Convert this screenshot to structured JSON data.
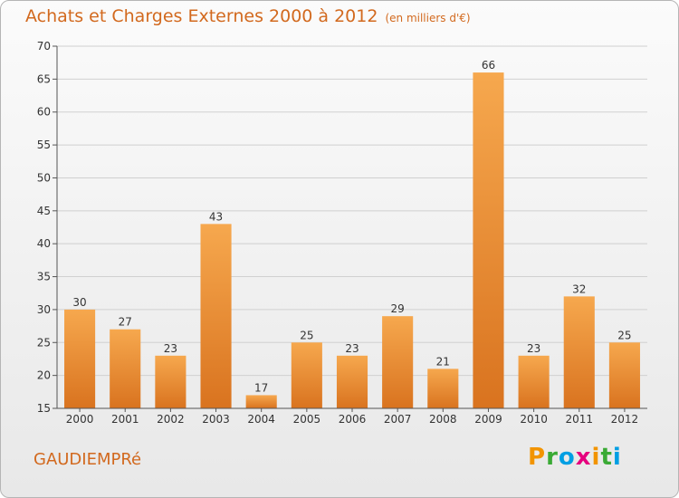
{
  "title": "Achats et Charges Externes 2000 à 2012",
  "unit_label": "(en milliers d'€)",
  "commune": "GAUDIEMPRé",
  "logo": {
    "letters": [
      "P",
      "r",
      "o",
      "x",
      "i",
      "t",
      "i"
    ],
    "colors": [
      "#f29400",
      "#3aaa35",
      "#009fe3",
      "#e6007e",
      "#f29400",
      "#3aaa35",
      "#009fe3"
    ]
  },
  "colors": {
    "bar_light": "#f6a84e",
    "bar_dark": "#d9731f",
    "text_accent": "#d2691e",
    "axis": "#555555",
    "grid": "#d0d0d0"
  },
  "chart_data": {
    "type": "bar",
    "title": "Achats et Charges Externes 2000 à 2012",
    "subtitle": "(en milliers d'€)",
    "xlabel": "",
    "ylabel": "",
    "categories": [
      "2000",
      "2001",
      "2002",
      "2003",
      "2004",
      "2005",
      "2006",
      "2007",
      "2008",
      "2009",
      "2010",
      "2011",
      "2012"
    ],
    "values": [
      30,
      27,
      23,
      43,
      17,
      25,
      23,
      29,
      21,
      66,
      23,
      32,
      25
    ],
    "ylim": [
      15,
      70
    ],
    "yticks": [
      15,
      20,
      25,
      30,
      35,
      40,
      45,
      50,
      55,
      60,
      65,
      70
    ],
    "grid": "horizontal",
    "legend": "none"
  }
}
